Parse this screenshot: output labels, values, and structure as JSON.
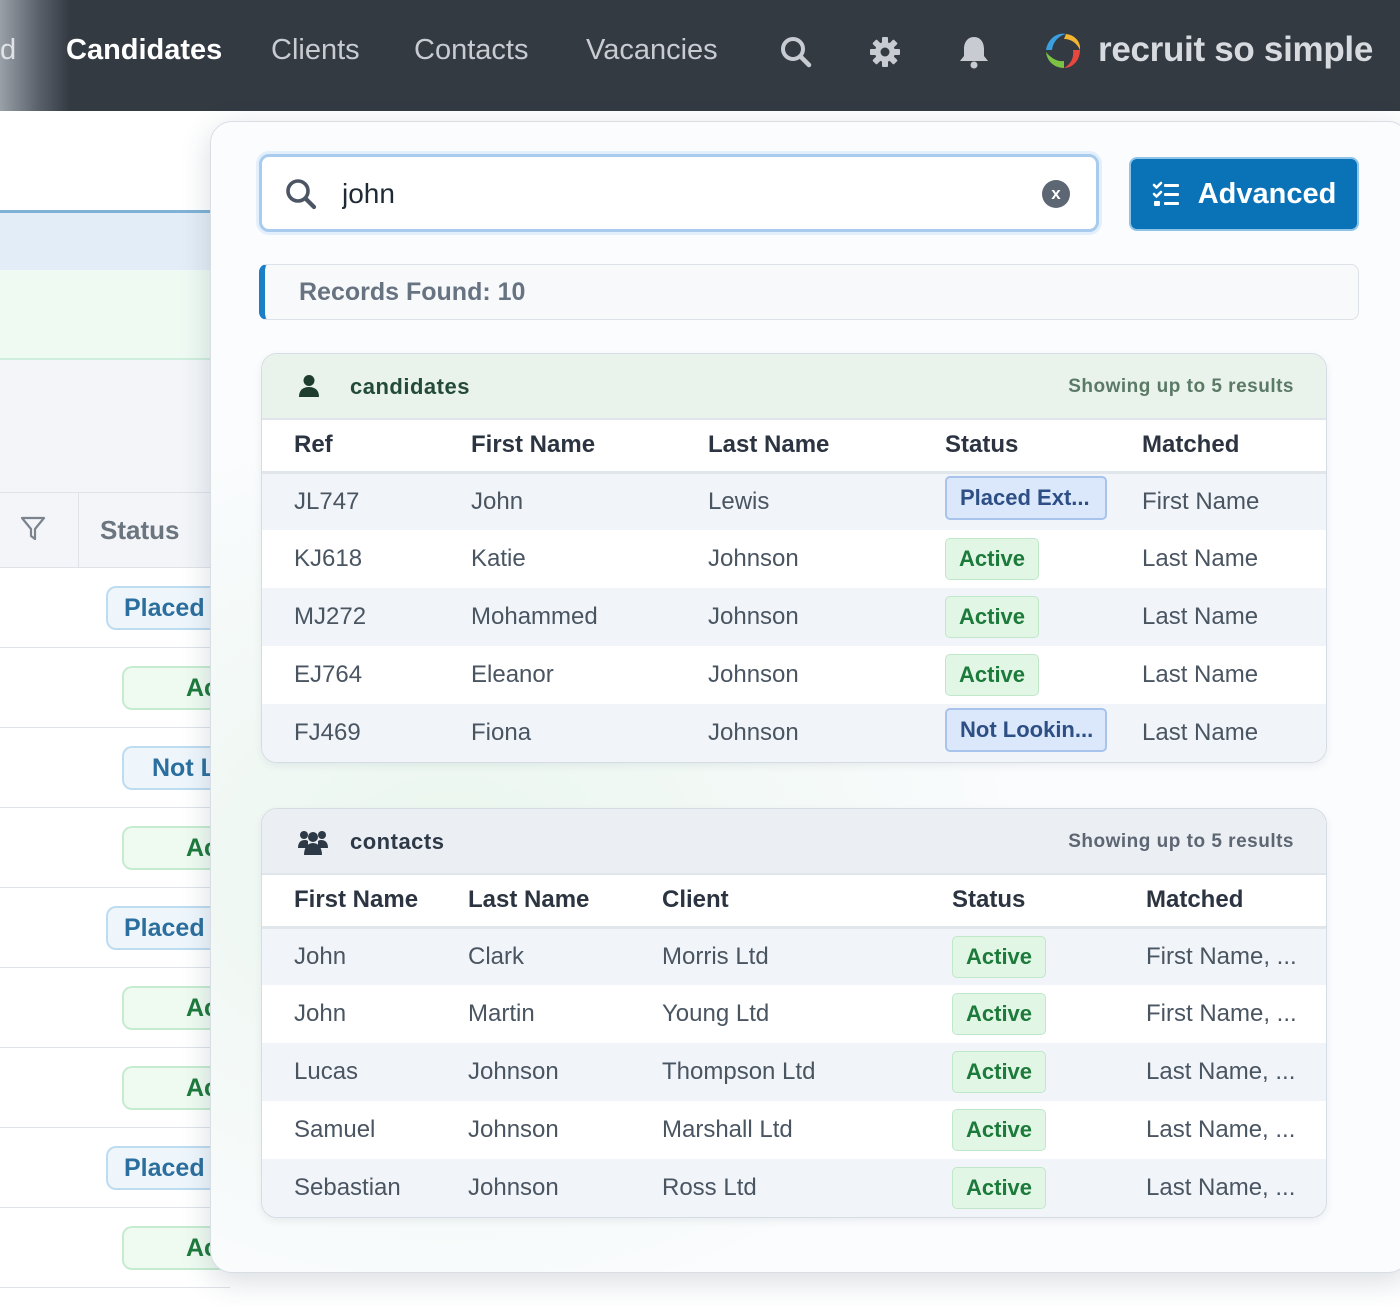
{
  "nav": {
    "partial_label": "d",
    "items": [
      "Candidates",
      "Clients",
      "Contacts",
      "Vacancies"
    ],
    "active": "Candidates",
    "icons": [
      "search-icon",
      "gear-icon",
      "bell-icon"
    ],
    "brand": "recruit so simple"
  },
  "background": {
    "column_header": "Status",
    "row_badges": [
      "Placed",
      "Ac",
      "Not L",
      "Ac",
      "Placed",
      "Ac",
      "Ac",
      "Placed",
      "Ac"
    ]
  },
  "search": {
    "value": "john",
    "clear_label": "x",
    "advanced_label": "Advanced"
  },
  "records_found": "Records Found: 10",
  "candidates": {
    "title": "candidates",
    "note": "Showing up to 5 results",
    "columns": [
      "Ref",
      "First Name",
      "Last Name",
      "Status",
      "Matched"
    ],
    "rows": [
      {
        "ref": "JL747",
        "first": "John",
        "last": "Lewis",
        "status": "Placed Ext...",
        "matched": "First Name"
      },
      {
        "ref": "KJ618",
        "first": "Katie",
        "last": "Johnson",
        "status": "Active",
        "matched": "Last Name"
      },
      {
        "ref": "MJ272",
        "first": "Mohammed",
        "last": "Johnson",
        "status": "Active",
        "matched": "Last Name"
      },
      {
        "ref": "EJ764",
        "first": "Eleanor",
        "last": "Johnson",
        "status": "Active",
        "matched": "Last Name"
      },
      {
        "ref": "FJ469",
        "first": "Fiona",
        "last": "Johnson",
        "status": "Not Lookin...",
        "matched": "Last Name"
      }
    ]
  },
  "contacts": {
    "title": "contacts",
    "note": "Showing up to 5 results",
    "columns": [
      "First Name",
      "Last Name",
      "Client",
      "Status",
      "Matched"
    ],
    "rows": [
      {
        "first": "John",
        "last": "Clark",
        "client": "Morris Ltd",
        "status": "Active",
        "matched": "First Name, ..."
      },
      {
        "first": "John",
        "last": "Martin",
        "client": "Young Ltd",
        "status": "Active",
        "matched": "First Name, ..."
      },
      {
        "first": "Lucas",
        "last": "Johnson",
        "client": "Thompson Ltd",
        "status": "Active",
        "matched": "Last Name, ..."
      },
      {
        "first": "Samuel",
        "last": "Johnson",
        "client": "Marshall Ltd",
        "status": "Active",
        "matched": "Last Name, ..."
      },
      {
        "first": "Sebastian",
        "last": "Johnson",
        "client": "Ross Ltd",
        "status": "Active",
        "matched": "Last Name, ..."
      }
    ]
  },
  "colors": {
    "nav_bg": "#343a42",
    "primary": "#0a73b8",
    "active_green": "#1c7a3a",
    "status_blue": "#2d4f85"
  }
}
